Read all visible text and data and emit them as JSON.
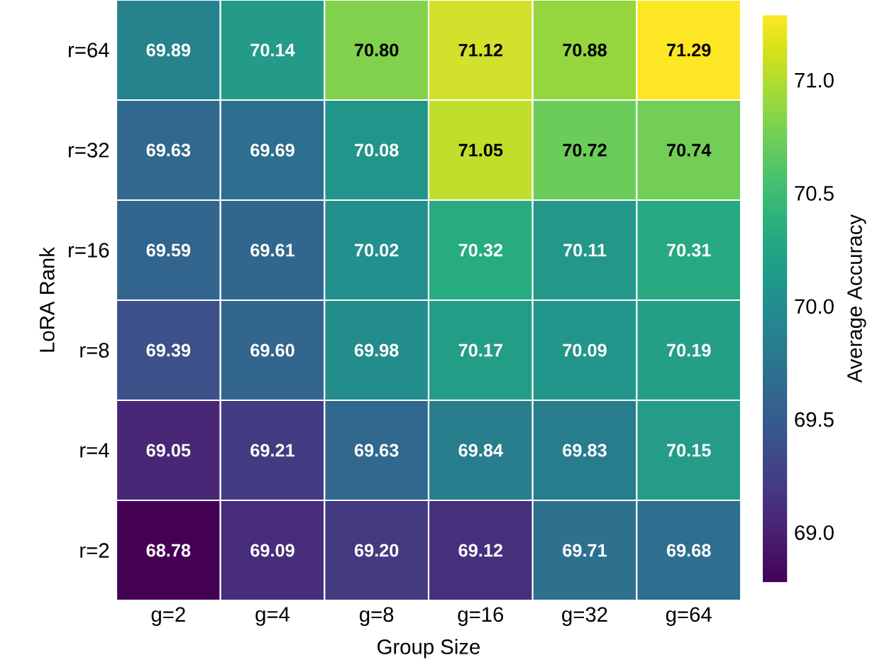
{
  "chart_data": {
    "type": "heatmap",
    "xlabel": "Group Size",
    "ylabel": "LoRA Rank",
    "clabel": "Average Accuracy",
    "categories": [
      "g=2",
      "g=4",
      "g=8",
      "g=16",
      "g=32",
      "g=64"
    ],
    "y_categories": [
      "r=64",
      "r=32",
      "r=16",
      "r=8",
      "r=4",
      "r=2"
    ],
    "cells": [
      [
        69.89,
        70.14,
        70.8,
        71.12,
        70.88,
        71.29
      ],
      [
        69.63,
        69.69,
        70.08,
        71.05,
        70.72,
        70.74
      ],
      [
        69.59,
        69.61,
        70.02,
        70.32,
        70.11,
        70.31
      ],
      [
        69.39,
        69.6,
        69.98,
        70.17,
        70.09,
        70.19
      ],
      [
        69.05,
        69.21,
        69.63,
        69.84,
        69.83,
        70.15
      ],
      [
        68.78,
        69.09,
        69.2,
        69.12,
        69.71,
        69.68
      ]
    ],
    "cell_labels": [
      [
        "69.89",
        "70.14",
        "70.80",
        "71.12",
        "70.88",
        "71.29"
      ],
      [
        "69.63",
        "69.69",
        "70.08",
        "71.05",
        "70.72",
        "70.74"
      ],
      [
        "69.59",
        "69.61",
        "70.02",
        "70.32",
        "70.11",
        "70.31"
      ],
      [
        "69.39",
        "69.60",
        "69.98",
        "70.17",
        "70.09",
        "70.19"
      ],
      [
        "69.05",
        "69.21",
        "69.63",
        "69.84",
        "69.83",
        "70.15"
      ],
      [
        "68.78",
        "69.09",
        "69.20",
        "69.12",
        "69.71",
        "69.68"
      ]
    ],
    "clim": [
      68.78,
      71.29
    ],
    "cticks": [
      {
        "value": 69,
        "label": "69.0"
      },
      {
        "value": 69.5,
        "label": "69.5"
      },
      {
        "value": 70,
        "label": "70.0"
      },
      {
        "value": 70.5,
        "label": "70.5"
      },
      {
        "value": 71,
        "label": "71.0"
      }
    ]
  }
}
